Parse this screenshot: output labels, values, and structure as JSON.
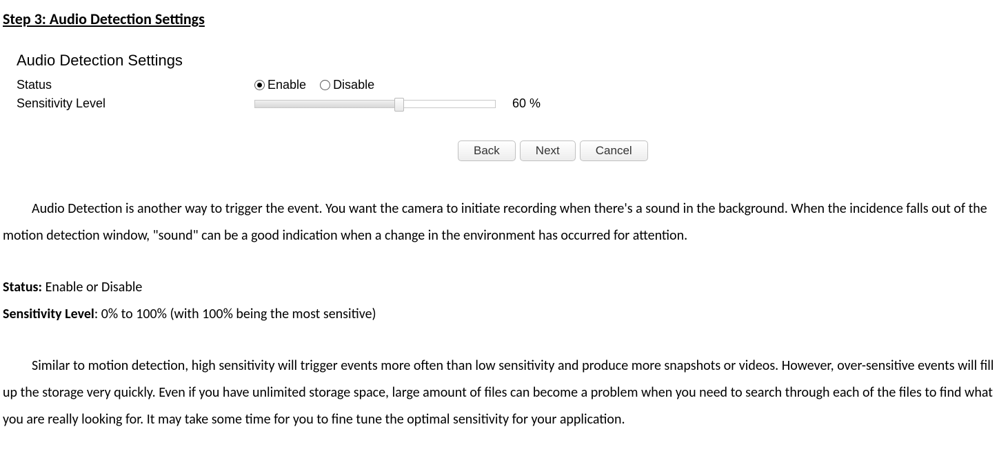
{
  "heading": "Step 3: Audio Detection Settings",
  "panel": {
    "title": "Audio Detection Settings",
    "status_label": "Status",
    "status_enable": "Enable",
    "status_disable": "Disable",
    "status_selected": "enable",
    "sensitivity_label": "Sensitivity Level",
    "sensitivity_value": 60,
    "sensitivity_display": "60 %"
  },
  "buttons": {
    "back": "Back",
    "next": "Next",
    "cancel": "Cancel"
  },
  "description": {
    "para1": "Audio Detection is another way to trigger the event. You want the camera to initiate recording when there's a sound in the background. When the incidence falls out of the motion detection window, \"sound\" can be a good indication when a change in the environment has occurred for attention.",
    "status_key": "Status:",
    "status_val": " Enable or Disable",
    "sens_key": "Sensitivity Level",
    "sens_val": ": 0% to 100% (with 100% being the most sensitive)",
    "para2": "Similar to motion detection, high sensitivity will trigger events more often than low sensitivity and produce more snapshots or videos. However, over-sensitive events will fill up the storage very quickly. Even if you have unlimited storage space, large amount of files can become a problem when you need to search through each of the files to find what you are really looking for. It may take some time for you to fine tune the optimal sensitivity for your application."
  },
  "style": {
    "slider_fill_percent": "60%",
    "colors": {
      "text": "#000000",
      "background": "#ffffff",
      "button_border": "#c0c0c0",
      "slider_border": "#c8c8c8"
    }
  }
}
